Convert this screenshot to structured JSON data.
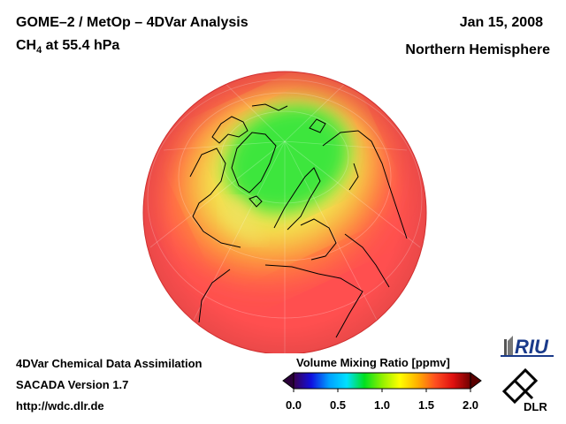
{
  "header": {
    "title_line1": "GOME–2 / MetOp – 4DVar Analysis",
    "species_main": "CH",
    "species_sub": "4",
    "species_rest": " at 55.4 hPa",
    "date": "Jan 15, 2008",
    "region": "Northern Hemisphere"
  },
  "footer": {
    "line1": "4DVar Chemical Data Assimilation",
    "line2": "SACADA Version 1.7",
    "line3": "http://wdc.dlr.de"
  },
  "colorbar": {
    "title": "Volume Mixing Ratio [ppmv]",
    "ticks": [
      "0.0",
      "0.5",
      "1.0",
      "1.5",
      "2.0"
    ],
    "min": 0.0,
    "max": 2.0,
    "colors": [
      "#3a0050",
      "#1010e0",
      "#00a0ff",
      "#00e0ff",
      "#00e020",
      "#90f000",
      "#ffff00",
      "#ffb000",
      "#ff5020",
      "#e01010",
      "#700000"
    ]
  },
  "logos": {
    "riu": "RIU",
    "dlr": "DLR"
  },
  "map": {
    "projection": "orthographic",
    "background_color": "#ff4f4f",
    "low_region_color": "#30e830",
    "mid_region_color": "#f0f050",
    "coastline_color": "#000000"
  }
}
